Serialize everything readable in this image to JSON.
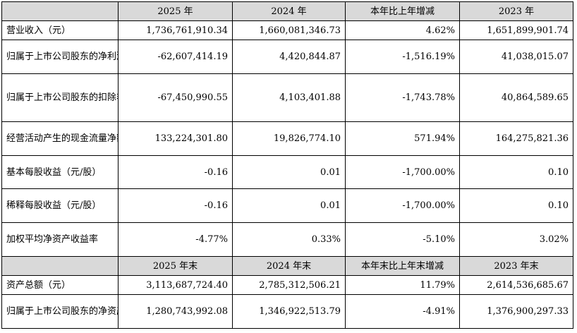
{
  "header1": [
    "",
    "2025 年",
    "2024 年",
    "本年比上年增减",
    "2023 年"
  ],
  "header2": [
    "",
    "2025 年末",
    "2024 年末",
    "本年末比上年末增减",
    "2023 年末"
  ],
  "rows1": [
    {
      "label": "营业收入（元）",
      "values": [
        "1,736,761,910.34",
        "1,660,081,346.73",
        "4.62%",
        "1,651,899,901.74"
      ]
    },
    {
      "label": "归属于上市公司股东的净利润（元）",
      "values": [
        "-62,607,414.19",
        "4,420,844.87",
        "-1,516.19%",
        "41,038,015.07"
      ]
    },
    {
      "label": "归属于上市公司股东的扣除非经常性损益的净利润（元）",
      "values": [
        "-67,450,990.55",
        "4,103,401.88",
        "-1,743.78%",
        "40,864,589.65"
      ]
    },
    {
      "label": "经营活动产生的现金流量净额（元）",
      "values": [
        "133,224,301.80",
        "19,826,774.10",
        "571.94%",
        "164,275,821.36"
      ]
    },
    {
      "label": "基本每股收益（元/股）",
      "values": [
        "-0.16",
        "0.01",
        "-1,700.00%",
        "0.10"
      ]
    },
    {
      "label": "稀释每股收益（元/股）",
      "values": [
        "-0.16",
        "0.01",
        "-1,700.00%",
        "0.10"
      ]
    },
    {
      "label": "加权平均净资产收益率",
      "values": [
        "-4.77%",
        "0.33%",
        "-5.10%",
        "3.02%"
      ]
    }
  ],
  "rows2": [
    {
      "label": "资产总额（元）",
      "values": [
        "3,113,687,724.40",
        "2,785,312,506.21",
        "11.79%",
        "2,614,536,685.67"
      ]
    },
    {
      "label": "归属于上市公司股东的净资产（元）",
      "values": [
        "1,280,743,992.08",
        "1,346,922,513.79",
        "-4.91%",
        "1,376,900,297.33"
      ]
    }
  ]
}
